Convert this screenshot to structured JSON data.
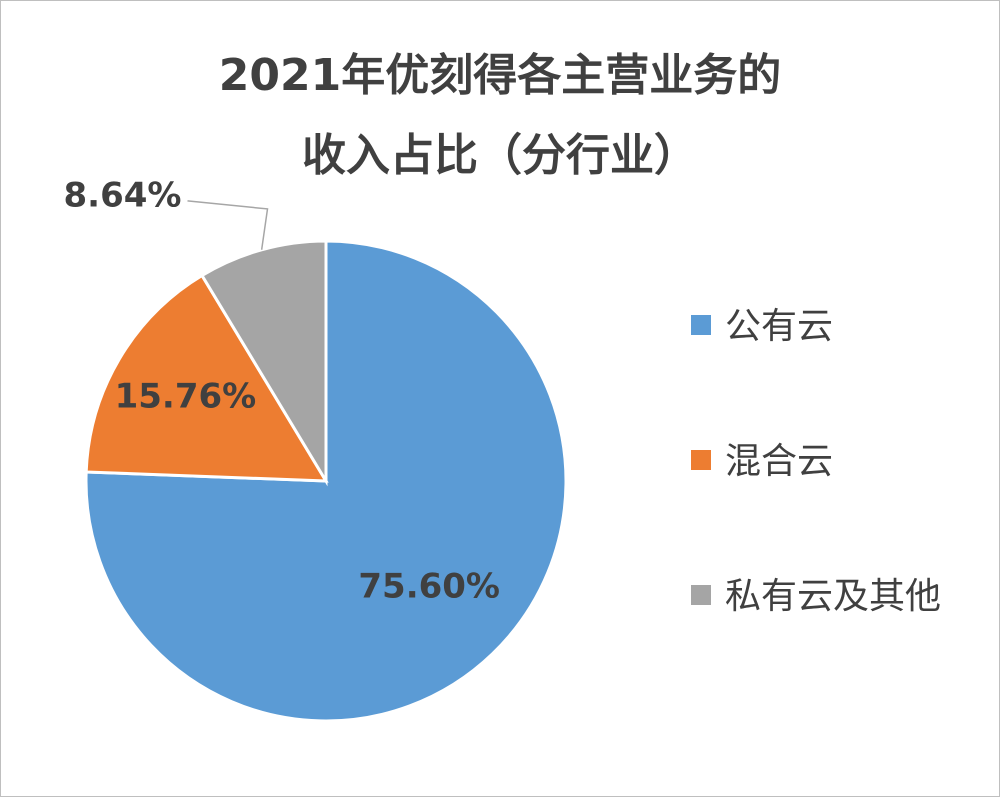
{
  "chart_data": {
    "type": "pie",
    "title": [
      "2021年优刻得各主营业务的",
      "收入占比（分行业）"
    ],
    "categories": [
      "公有云",
      "混合云",
      "私有云及其他"
    ],
    "values": [
      75.6,
      15.76,
      8.64
    ],
    "value_labels": [
      "75.60%",
      "15.76%",
      "8.64%"
    ],
    "colors": [
      "#5b9bd5",
      "#ed7d31",
      "#a5a5a5"
    ],
    "legend": "right"
  }
}
